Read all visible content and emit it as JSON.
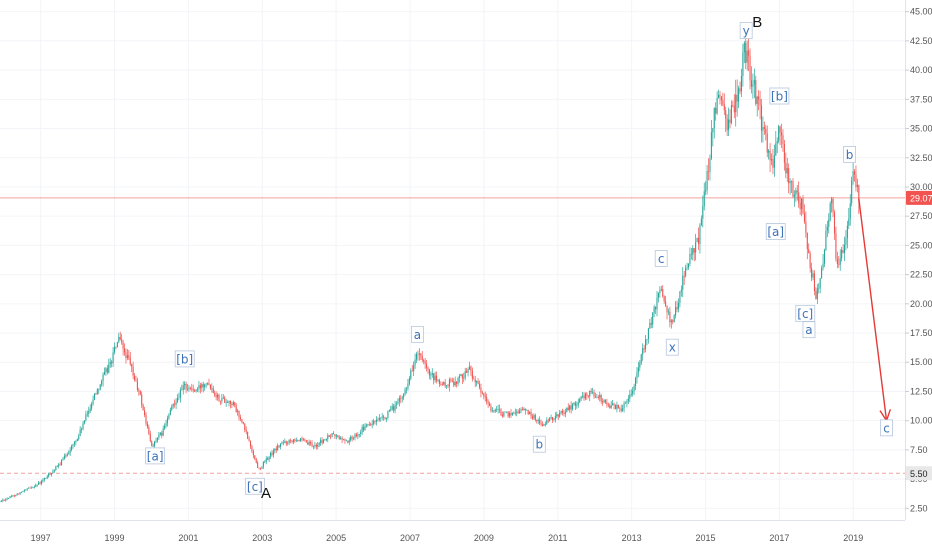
{
  "chart_data": {
    "type": "candlestick",
    "y_axis": {
      "position": "right",
      "range": [
        1.5,
        46
      ],
      "tick_labels": [
        "45.00",
        "42.50",
        "40.00",
        "37.50",
        "35.00",
        "32.50",
        "30.00",
        "27.50",
        "25.00",
        "22.50",
        "20.00",
        "17.50",
        "15.00",
        "12.50",
        "10.00",
        "7.50",
        "5.00",
        "2.50"
      ]
    },
    "x_axis": {
      "range": [
        1995.9,
        2020.4
      ],
      "tick_labels": [
        "1997",
        "1999",
        "2001",
        "2003",
        "2005",
        "2007",
        "2009",
        "2011",
        "2013",
        "2015",
        "2017",
        "2019"
      ]
    },
    "price_line": {
      "value": "29.07",
      "color": "#f05350"
    },
    "support_line": {
      "value": "5.50",
      "color": "#f0a0a0"
    },
    "candle_colors": {
      "up": "#26a69a",
      "down": "#ef5350"
    },
    "price_path": [
      [
        1995.9,
        3.1
      ],
      [
        1996.5,
        3.9
      ],
      [
        1997.0,
        4.7
      ],
      [
        1997.5,
        6.2
      ],
      [
        1998.0,
        8.5
      ],
      [
        1998.5,
        12.5
      ],
      [
        1998.9,
        15.0
      ],
      [
        1999.1,
        17.0
      ],
      [
        1999.4,
        15.0
      ],
      [
        1999.7,
        12.0
      ],
      [
        2000.0,
        7.8
      ],
      [
        2000.3,
        9.0
      ],
      [
        2000.6,
        11.5
      ],
      [
        2000.9,
        13.0
      ],
      [
        2001.2,
        12.5
      ],
      [
        2001.5,
        13.5
      ],
      [
        2001.8,
        12.0
      ],
      [
        2002.2,
        11.5
      ],
      [
        2002.5,
        9.5
      ],
      [
        2002.9,
        5.8
      ],
      [
        2003.2,
        7.0
      ],
      [
        2003.5,
        8.0
      ],
      [
        2003.9,
        8.5
      ],
      [
        2004.4,
        7.8
      ],
      [
        2004.9,
        8.8
      ],
      [
        2005.3,
        8.2
      ],
      [
        2005.8,
        9.5
      ],
      [
        2006.3,
        10.2
      ],
      [
        2006.8,
        12.0
      ],
      [
        2007.2,
        15.8
      ],
      [
        2007.5,
        14.0
      ],
      [
        2007.9,
        13.0
      ],
      [
        2008.3,
        13.5
      ],
      [
        2008.6,
        14.5
      ],
      [
        2008.9,
        12.5
      ],
      [
        2009.2,
        11.0
      ],
      [
        2009.6,
        10.5
      ],
      [
        2010.1,
        11.0
      ],
      [
        2010.6,
        9.6
      ],
      [
        2011.0,
        10.5
      ],
      [
        2011.5,
        11.5
      ],
      [
        2011.9,
        12.5
      ],
      [
        2012.3,
        11.5
      ],
      [
        2012.7,
        11.0
      ],
      [
        2013.0,
        12.5
      ],
      [
        2013.4,
        17.0
      ],
      [
        2013.8,
        21.5
      ],
      [
        2014.1,
        18.0
      ],
      [
        2014.4,
        22.5
      ],
      [
        2014.8,
        25.5
      ],
      [
        2015.0,
        30.0
      ],
      [
        2015.3,
        37.5
      ],
      [
        2015.6,
        35.5
      ],
      [
        2015.9,
        38.0
      ],
      [
        2016.05,
        42.0
      ],
      [
        2016.3,
        38.5
      ],
      [
        2016.6,
        34.5
      ],
      [
        2016.8,
        31.5
      ],
      [
        2017.0,
        35.5
      ],
      [
        2017.2,
        31.0
      ],
      [
        2017.4,
        29.5
      ],
      [
        2017.6,
        28.5
      ],
      [
        2017.8,
        24.0
      ],
      [
        2018.0,
        20.5
      ],
      [
        2018.2,
        24.0
      ],
      [
        2018.4,
        29.5
      ],
      [
        2018.55,
        23.5
      ],
      [
        2018.7,
        24.5
      ],
      [
        2018.85,
        27.0
      ],
      [
        2019.0,
        31.0
      ],
      [
        2019.15,
        29.0
      ]
    ],
    "projection": {
      "from": [
        2019.15,
        29.0
      ],
      "to": [
        2019.9,
        10.0
      ],
      "color": "#e53935"
    },
    "annotations": [
      {
        "label": "[a]",
        "x": 2000.1,
        "y": 6.9,
        "style": "boxed"
      },
      {
        "label": "[b]",
        "x": 2000.9,
        "y": 15.2,
        "style": "boxed"
      },
      {
        "label": "[c]",
        "x": 2002.8,
        "y": 4.3,
        "style": "boxed"
      },
      {
        "label": "A",
        "x": 2003.1,
        "y": 3.8,
        "style": "plain"
      },
      {
        "label": "a",
        "x": 2007.2,
        "y": 17.3,
        "style": "boxed"
      },
      {
        "label": "b",
        "x": 2010.5,
        "y": 7.9,
        "style": "boxed"
      },
      {
        "label": "c",
        "x": 2013.8,
        "y": 23.8,
        "style": "boxed"
      },
      {
        "label": "x",
        "x": 2014.1,
        "y": 16.2,
        "style": "boxed"
      },
      {
        "label": "y",
        "x": 2016.1,
        "y": 43.3,
        "style": "boxed"
      },
      {
        "label": "B",
        "x": 2016.4,
        "y": 44.1,
        "style": "plain"
      },
      {
        "label": "[b]",
        "x": 2017.0,
        "y": 37.7,
        "style": "boxed"
      },
      {
        "label": "[a]",
        "x": 2016.9,
        "y": 26.1,
        "style": "boxed"
      },
      {
        "label": "[c]",
        "x": 2017.7,
        "y": 19.1,
        "style": "boxed"
      },
      {
        "label": "a",
        "x": 2017.8,
        "y": 17.7,
        "style": "boxed"
      },
      {
        "label": "b",
        "x": 2018.9,
        "y": 32.7,
        "style": "boxed"
      },
      {
        "label": "c",
        "x": 2019.9,
        "y": 9.3,
        "style": "boxed"
      }
    ]
  }
}
